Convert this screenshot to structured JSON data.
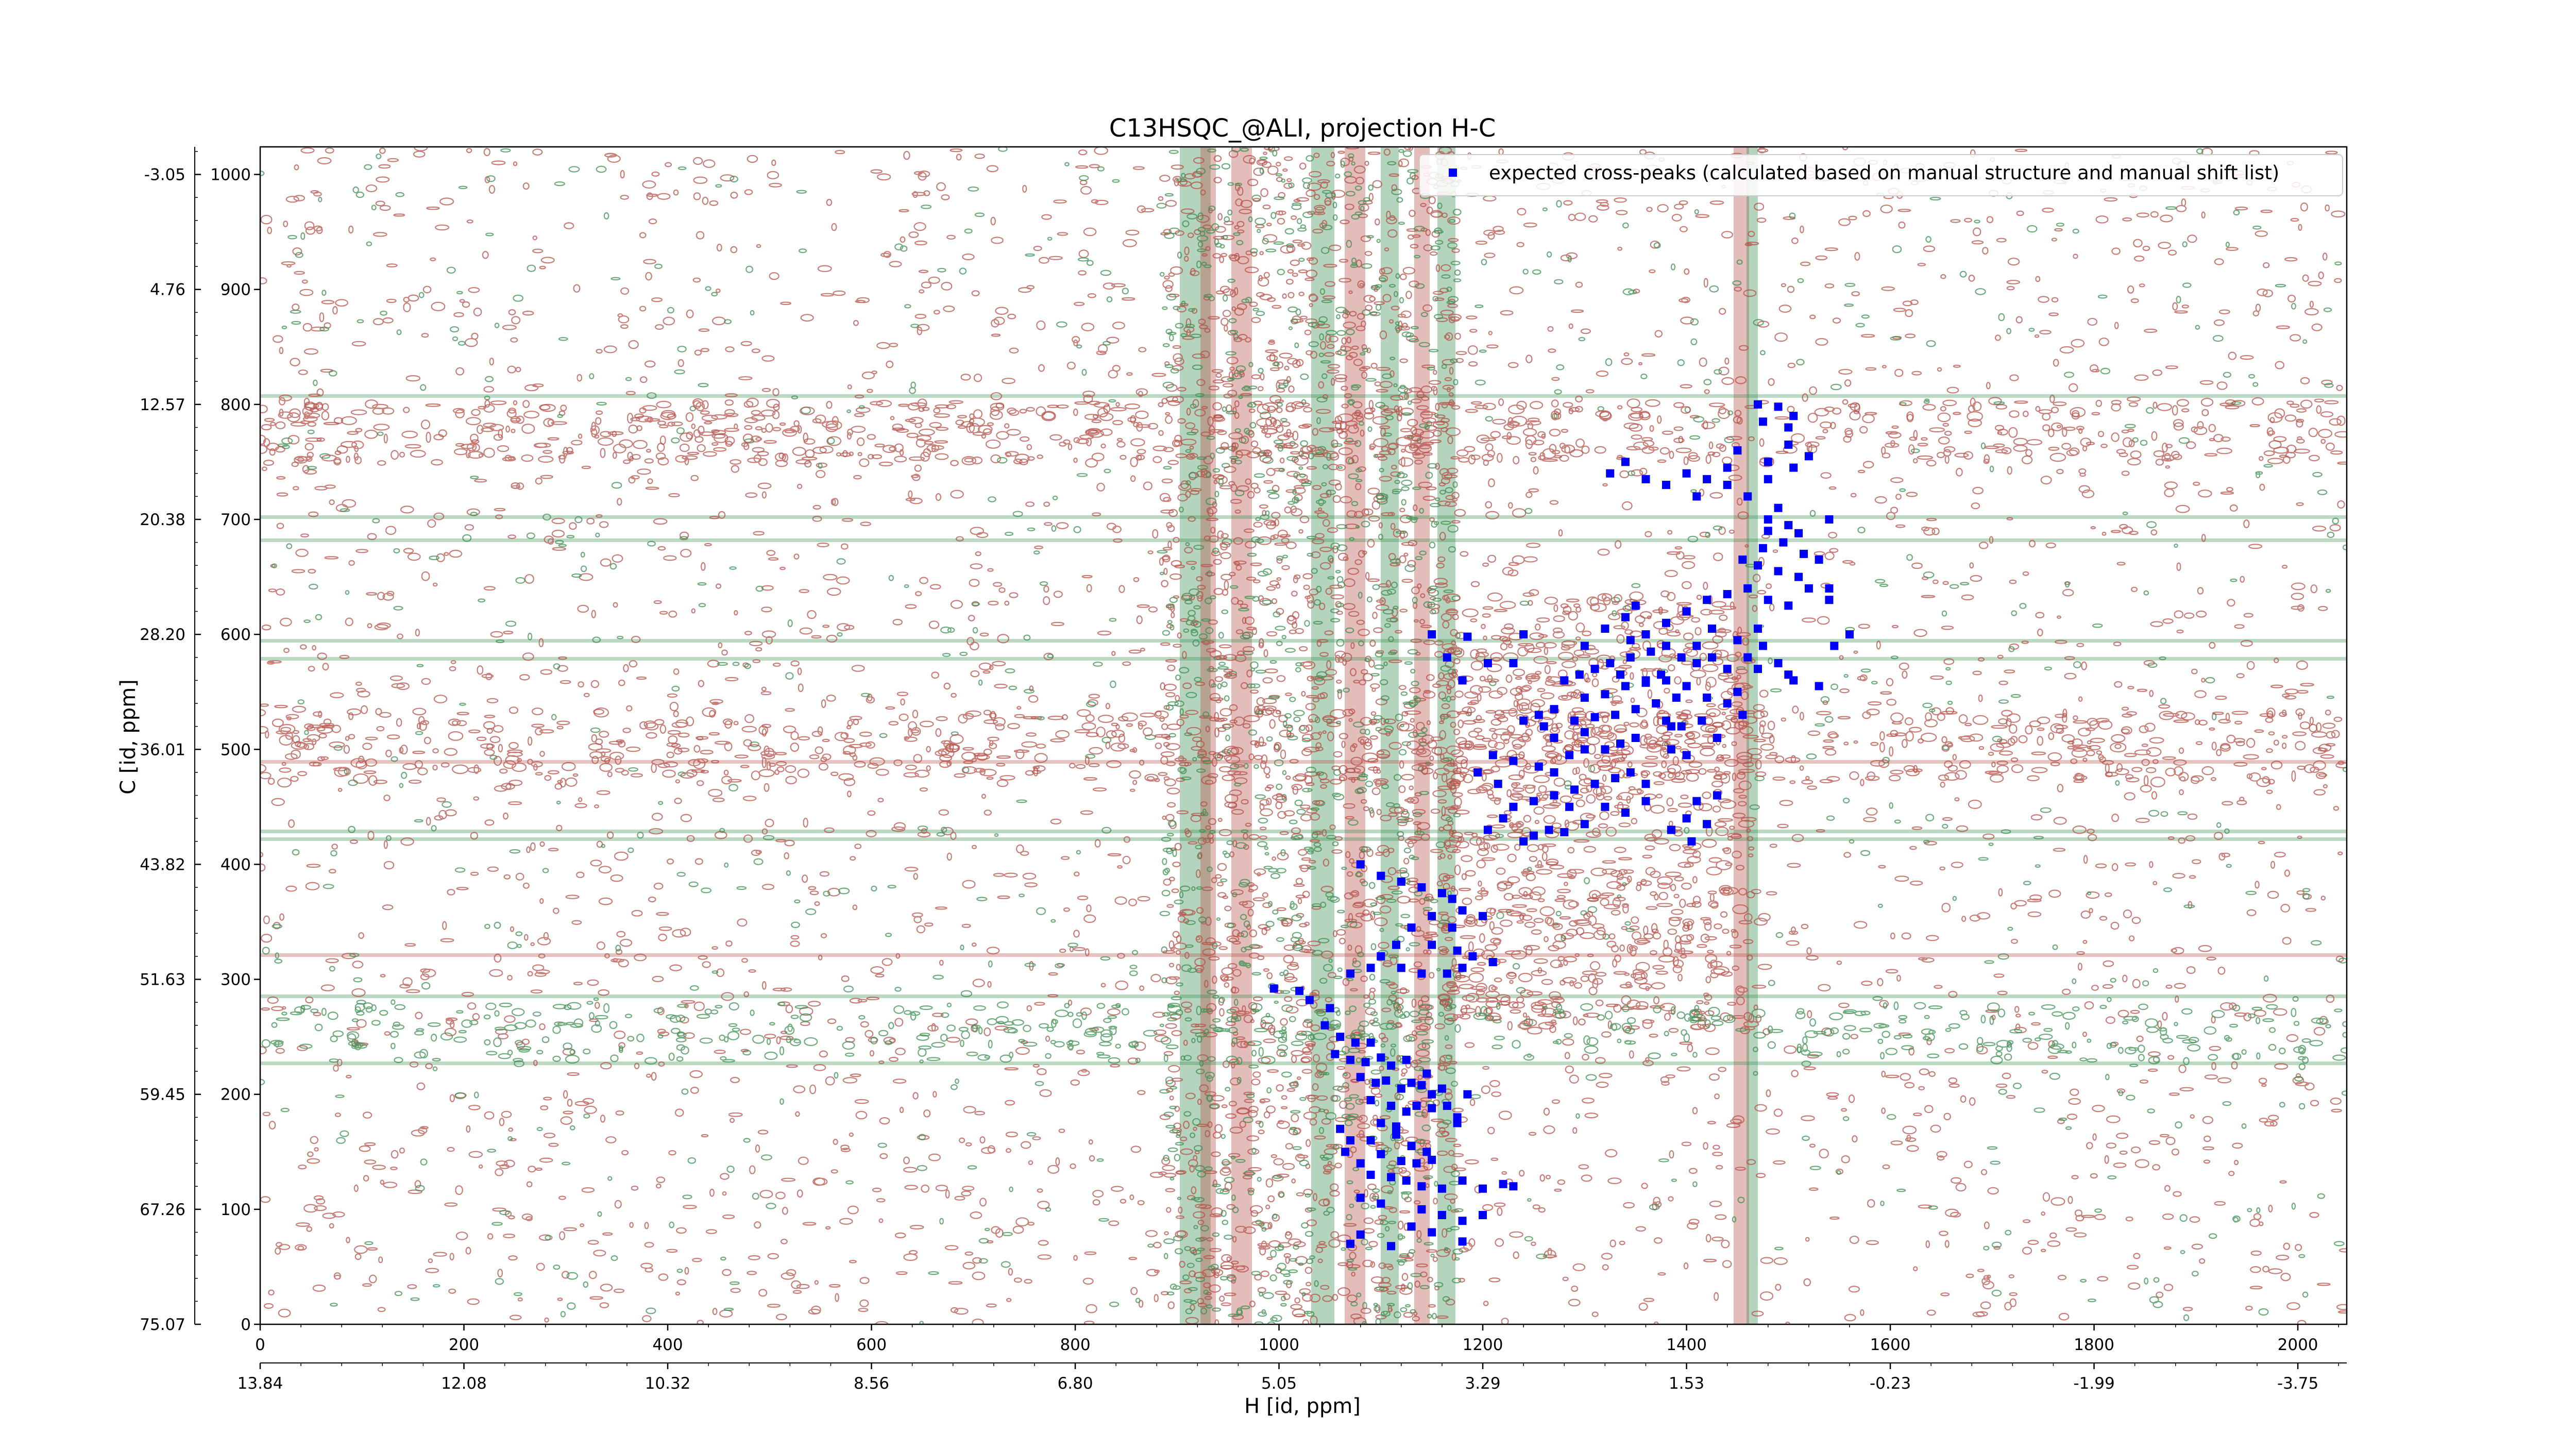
{
  "chart_data": {
    "type": "scatter",
    "title": "C13HSQC_@ALI, projection H-C",
    "xlabel": "H [id, ppm]",
    "ylabel": "C [id, ppm]",
    "xlim": [
      0,
      2048
    ],
    "ylim": [
      0,
      1024
    ],
    "x_ticks": [
      0,
      200,
      400,
      600,
      800,
      1000,
      1200,
      1400,
      1600,
      1800,
      2000
    ],
    "y_ticks": [
      0,
      100,
      200,
      300,
      400,
      500,
      600,
      700,
      800,
      900,
      1000
    ],
    "h_ppm_tick_labels": [
      "13.84",
      "12.08",
      "10.32",
      "8.56",
      "6.80",
      "5.05",
      "3.29",
      "1.53",
      "-0.23",
      "-1.99",
      "-3.75"
    ],
    "c_ppm_tick_labels": [
      "75.07",
      "67.26",
      "59.45",
      "51.63",
      "43.82",
      "36.01",
      "28.20",
      "20.38",
      "12.57",
      "4.76",
      "-3.05"
    ],
    "legend_position": "top-right",
    "colors": {
      "positive_contours": "#b5524a",
      "negative_contours": "#3d8f52",
      "expected_peaks": "#0000ff"
    },
    "series": [
      {
        "name": "expected cross-peaks (calculated based on manual structure and manual shift list)",
        "points": [
          [
            995,
            292
          ],
          [
            1020,
            290
          ],
          [
            1030,
            282
          ],
          [
            1050,
            275
          ],
          [
            1045,
            260
          ],
          [
            1060,
            250
          ],
          [
            1075,
            245
          ],
          [
            1090,
            245
          ],
          [
            1055,
            235
          ],
          [
            1070,
            230
          ],
          [
            1085,
            228
          ],
          [
            1100,
            232
          ],
          [
            1110,
            225
          ],
          [
            1125,
            230
          ],
          [
            1080,
            215
          ],
          [
            1095,
            210
          ],
          [
            1105,
            212
          ],
          [
            1120,
            205
          ],
          [
            1130,
            210
          ],
          [
            1140,
            208
          ],
          [
            1150,
            200
          ],
          [
            1160,
            205
          ],
          [
            1145,
            218
          ],
          [
            1135,
            190
          ],
          [
            1150,
            188
          ],
          [
            1165,
            190
          ],
          [
            1175,
            180
          ],
          [
            1090,
            195
          ],
          [
            1110,
            190
          ],
          [
            1125,
            185
          ],
          [
            1100,
            175
          ],
          [
            1115,
            172
          ],
          [
            1060,
            170
          ],
          [
            1070,
            160
          ],
          [
            1090,
            160
          ],
          [
            1115,
            165
          ],
          [
            1130,
            155
          ],
          [
            1145,
            150
          ],
          [
            1100,
            148
          ],
          [
            1120,
            142
          ],
          [
            1135,
            140
          ],
          [
            1150,
            143
          ],
          [
            1065,
            150
          ],
          [
            1080,
            140
          ],
          [
            1090,
            130
          ],
          [
            1110,
            128
          ],
          [
            1125,
            125
          ],
          [
            1140,
            120
          ],
          [
            1160,
            118
          ],
          [
            1180,
            125
          ],
          [
            1200,
            118
          ],
          [
            1230,
            120
          ],
          [
            1080,
            110
          ],
          [
            1100,
            105
          ],
          [
            1140,
            100
          ],
          [
            1160,
            95
          ],
          [
            1180,
            90
          ],
          [
            1200,
            95
          ],
          [
            1130,
            85
          ],
          [
            1150,
            80
          ],
          [
            1180,
            72
          ],
          [
            1080,
            78
          ],
          [
            1070,
            70
          ],
          [
            1110,
            68
          ],
          [
            1220,
            122
          ],
          [
            1175,
            175
          ],
          [
            1185,
            200
          ],
          [
            1080,
            400
          ],
          [
            1100,
            390
          ],
          [
            1120,
            385
          ],
          [
            1140,
            380
          ],
          [
            1160,
            375
          ],
          [
            1170,
            370
          ],
          [
            1180,
            360
          ],
          [
            1200,
            355
          ],
          [
            1150,
            355
          ],
          [
            1170,
            345
          ],
          [
            1130,
            345
          ],
          [
            1115,
            330
          ],
          [
            1150,
            330
          ],
          [
            1175,
            325
          ],
          [
            1190,
            320
          ],
          [
            1210,
            315
          ],
          [
            1100,
            320
          ],
          [
            1090,
            310
          ],
          [
            1120,
            310
          ],
          [
            1140,
            305
          ],
          [
            1165,
            305
          ],
          [
            1180,
            310
          ],
          [
            1070,
            305
          ],
          [
            1185,
            598
          ],
          [
            1205,
            575
          ],
          [
            1230,
            575
          ],
          [
            1240,
            600
          ],
          [
            1150,
            600
          ],
          [
            1165,
            580
          ],
          [
            1180,
            560
          ],
          [
            1240,
            420
          ],
          [
            1250,
            425
          ],
          [
            1265,
            430
          ],
          [
            1280,
            428
          ],
          [
            1300,
            435
          ],
          [
            1220,
            440
          ],
          [
            1230,
            450
          ],
          [
            1250,
            455
          ],
          [
            1270,
            460
          ],
          [
            1290,
            465
          ],
          [
            1320,
            450
          ],
          [
            1340,
            445
          ],
          [
            1360,
            455
          ],
          [
            1310,
            470
          ],
          [
            1330,
            475
          ],
          [
            1345,
            480
          ],
          [
            1215,
            470
          ],
          [
            1195,
            480
          ],
          [
            1210,
            495
          ],
          [
            1230,
            490
          ],
          [
            1255,
            485
          ],
          [
            1270,
            480
          ],
          [
            1285,
            495
          ],
          [
            1300,
            500
          ],
          [
            1320,
            500
          ],
          [
            1335,
            505
          ],
          [
            1350,
            510
          ],
          [
            1270,
            510
          ],
          [
            1260,
            520
          ],
          [
            1240,
            525
          ],
          [
            1290,
            525
          ],
          [
            1310,
            528
          ],
          [
            1330,
            530
          ],
          [
            1350,
            535
          ],
          [
            1370,
            540
          ],
          [
            1380,
            525
          ],
          [
            1395,
            520
          ],
          [
            1415,
            525
          ],
          [
            1430,
            510
          ],
          [
            1385,
            500
          ],
          [
            1400,
            495
          ],
          [
            1300,
            545
          ],
          [
            1320,
            548
          ],
          [
            1340,
            555
          ],
          [
            1360,
            558
          ],
          [
            1380,
            560
          ],
          [
            1400,
            555
          ],
          [
            1420,
            545
          ],
          [
            1440,
            540
          ],
          [
            1455,
            530
          ],
          [
            1450,
            550
          ],
          [
            1280,
            560
          ],
          [
            1295,
            565
          ],
          [
            1310,
            570
          ],
          [
            1325,
            575
          ],
          [
            1345,
            580
          ],
          [
            1365,
            585
          ],
          [
            1380,
            590
          ],
          [
            1395,
            580
          ],
          [
            1410,
            575
          ],
          [
            1425,
            580
          ],
          [
            1440,
            570
          ],
          [
            1460,
            580
          ],
          [
            1475,
            590
          ],
          [
            1490,
            575
          ],
          [
            1500,
            565
          ],
          [
            1450,
            595
          ],
          [
            1470,
            605
          ],
          [
            1360,
            600
          ],
          [
            1380,
            610
          ],
          [
            1400,
            620
          ],
          [
            1420,
            630
          ],
          [
            1440,
            635
          ],
          [
            1460,
            640
          ],
          [
            1480,
            630
          ],
          [
            1500,
            625
          ],
          [
            1320,
            605
          ],
          [
            1340,
            615
          ],
          [
            1300,
            590
          ],
          [
            1385,
            430
          ],
          [
            1400,
            440
          ],
          [
            1420,
            435
          ],
          [
            1405,
            420
          ],
          [
            1410,
            455
          ],
          [
            1360,
            470
          ],
          [
            1255,
            530
          ],
          [
            1510,
            650
          ],
          [
            1490,
            655
          ],
          [
            1470,
            660
          ],
          [
            1455,
            665
          ],
          [
            1475,
            675
          ],
          [
            1495,
            680
          ],
          [
            1510,
            688
          ],
          [
            1480,
            690
          ],
          [
            1515,
            670
          ],
          [
            1530,
            665
          ],
          [
            1540,
            640
          ],
          [
            1520,
            640
          ],
          [
            1500,
            695
          ],
          [
            1480,
            700
          ],
          [
            1490,
            710
          ],
          [
            1460,
            720
          ],
          [
            1440,
            730
          ],
          [
            1420,
            735
          ],
          [
            1400,
            740
          ],
          [
            1380,
            730
          ],
          [
            1360,
            735
          ],
          [
            1340,
            750
          ],
          [
            1325,
            740
          ],
          [
            1505,
            745
          ],
          [
            1480,
            750
          ],
          [
            1500,
            765
          ],
          [
            1520,
            755
          ],
          [
            1480,
            735
          ],
          [
            1470,
            800
          ],
          [
            1490,
            798
          ],
          [
            1505,
            790
          ],
          [
            1475,
            785
          ],
          [
            1500,
            780
          ],
          [
            1540,
            630
          ],
          [
            1560,
            600
          ],
          [
            1545,
            590
          ],
          [
            1470,
            570
          ],
          [
            1375,
            565
          ],
          [
            1345,
            595
          ],
          [
            1300,
            515
          ],
          [
            1285,
            450
          ],
          [
            1205,
            430
          ],
          [
            1360,
            560
          ],
          [
            1390,
            545
          ],
          [
            1430,
            460
          ],
          [
            1385,
            520
          ],
          [
            1540,
            700
          ],
          [
            1410,
            720
          ],
          [
            1440,
            745
          ],
          [
            1450,
            760
          ],
          [
            1530,
            555
          ],
          [
            1505,
            560
          ],
          [
            1270,
            535
          ],
          [
            1410,
            590
          ],
          [
            1425,
            605
          ],
          [
            1335,
            565
          ],
          [
            1350,
            625
          ]
        ]
      }
    ]
  }
}
